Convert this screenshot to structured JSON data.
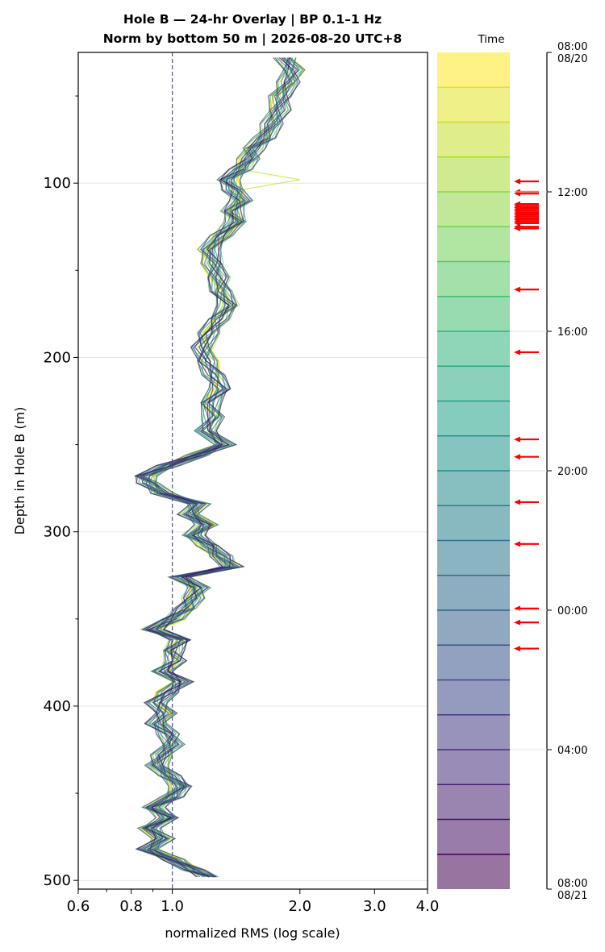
{
  "chart_data": {
    "type": "line",
    "title": [
      "Hole B — 24-hr Overlay  |  BP 0.1–1 Hz",
      "Norm by bottom 50 m  |  2026-08-20 UTC+8"
    ],
    "xlabel": "normalized RMS  (log scale)",
    "ylabel": "Depth in Hole B (m)",
    "xscale": "log",
    "xlim": [
      0.6,
      4.0
    ],
    "ylim": [
      505,
      25
    ],
    "xticks": [
      0.6,
      0.8,
      1.0,
      2.0,
      3.0,
      4.0
    ],
    "xtick_labels": [
      "0.6",
      "0.8",
      "1.0",
      "2.0",
      "3.0",
      "4.0"
    ],
    "yticks": [
      100,
      200,
      300,
      400,
      500
    ],
    "ytick_labels": [
      "100",
      "200",
      "300",
      "400",
      "500"
    ],
    "grid": true,
    "reference_line": {
      "x": 1.0,
      "style": "dashed"
    },
    "profile": {
      "depth": [
        28,
        35,
        42,
        50,
        58,
        66,
        74,
        80,
        86,
        92,
        98,
        104,
        110,
        116,
        122,
        130,
        138,
        146,
        154,
        162,
        170,
        178,
        186,
        194,
        202,
        210,
        218,
        226,
        234,
        242,
        250,
        256,
        262,
        268,
        272,
        278,
        284,
        290,
        296,
        302,
        308,
        314,
        320,
        326,
        332,
        338,
        344,
        350,
        356,
        362,
        368,
        374,
        380,
        386,
        392,
        398,
        404,
        410,
        416,
        422,
        428,
        434,
        440,
        446,
        452,
        458,
        464,
        470,
        476,
        482,
        488,
        494,
        498
      ],
      "rms": [
        1.85,
        1.92,
        1.88,
        1.8,
        1.78,
        1.72,
        1.65,
        1.55,
        1.52,
        1.45,
        1.35,
        1.4,
        1.45,
        1.38,
        1.42,
        1.3,
        1.22,
        1.25,
        1.28,
        1.3,
        1.36,
        1.28,
        1.22,
        1.18,
        1.2,
        1.25,
        1.3,
        1.22,
        1.25,
        1.2,
        1.32,
        1.15,
        0.98,
        0.86,
        0.88,
        0.95,
        1.15,
        1.1,
        1.2,
        1.12,
        1.22,
        1.3,
        1.38,
        1.05,
        1.15,
        1.12,
        1.08,
        1.0,
        0.9,
        1.05,
        1.0,
        1.02,
        0.95,
        1.05,
        0.98,
        0.92,
        0.96,
        0.92,
        0.98,
        1.0,
        0.95,
        0.92,
        0.98,
        1.05,
        1.0,
        0.9,
        0.98,
        0.88,
        0.95,
        0.88,
        1.0,
        1.12,
        1.22
      ]
    },
    "colorbar": {
      "label": "Time",
      "tick_labels": [
        "08:00\n08/20",
        "12:00",
        "16:00",
        "20:00",
        "00:00",
        "04:00",
        "08:00\n08/21"
      ],
      "tick_hours": [
        0,
        4,
        8,
        12,
        16,
        20,
        24
      ],
      "bins": 24,
      "event_hours": [
        3.7,
        4.0,
        4.05,
        4.35,
        4.4,
        4.45,
        4.5,
        4.55,
        4.6,
        4.65,
        4.7,
        4.75,
        4.8,
        4.85,
        4.9,
        5.0,
        5.05,
        6.8,
        8.6,
        11.1,
        11.6,
        12.9,
        14.1,
        15.95,
        16.35,
        17.1
      ]
    },
    "colors": {
      "event_arrow": "#ff0000",
      "reference_line": "#555588"
    }
  }
}
